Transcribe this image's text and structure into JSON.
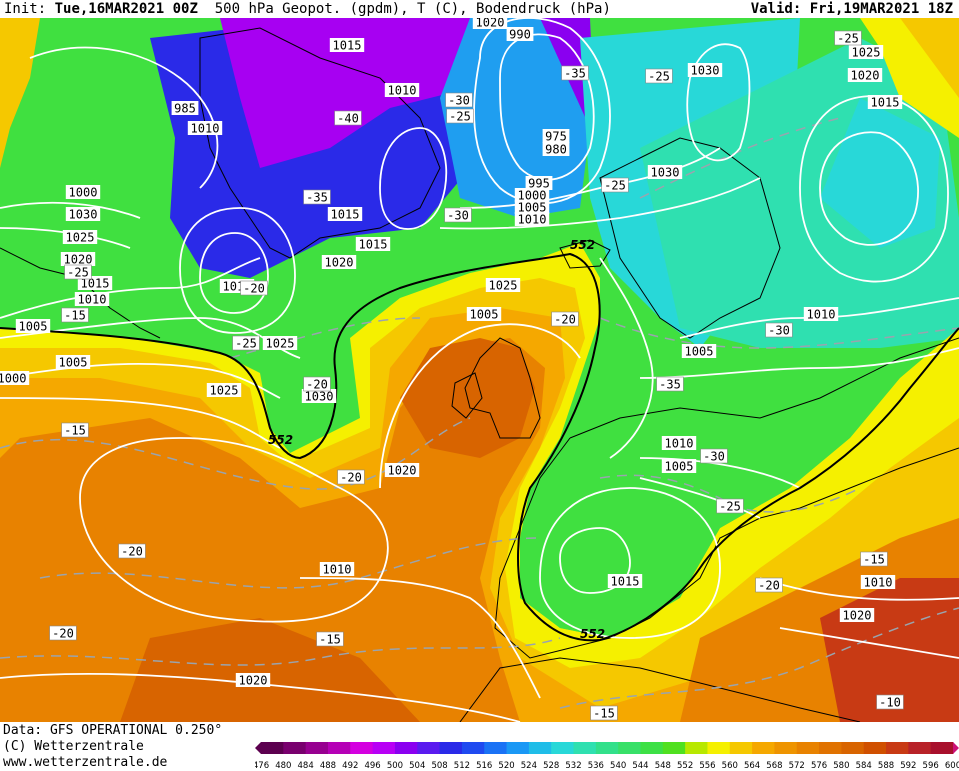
{
  "header": {
    "init_label": "Init:",
    "init_value": "Tue,16MAR2021 00Z",
    "product": "500 hPa Geopot. (gpdm), T (C), Bodendruck (hPa)",
    "valid_label": "Valid:",
    "valid_value": "Fri,19MAR2021 18Z"
  },
  "footer": {
    "data_line": "Data: GFS OPERATIONAL 0.250°",
    "copyright": "(C) Wetterzentrale",
    "url": "www.wetterzentrale.de"
  },
  "colorbar": {
    "ticks": [
      "476",
      "480",
      "484",
      "488",
      "492",
      "496",
      "500",
      "504",
      "508",
      "512",
      "516",
      "520",
      "524",
      "528",
      "532",
      "536",
      "540",
      "544",
      "548",
      "552",
      "556",
      "560",
      "564",
      "568",
      "572",
      "576",
      "580",
      "584",
      "588",
      "592",
      "596",
      "600"
    ],
    "colors": [
      "#5c004f",
      "#79006e",
      "#970090",
      "#b500b6",
      "#d400e0",
      "#b800f5",
      "#8a00f0",
      "#5a1bef",
      "#2a2ae8",
      "#1f4af0",
      "#1a72f5",
      "#1a98f5",
      "#1fbde8",
      "#28d8d8",
      "#2fe0b0",
      "#32e08a",
      "#38e068",
      "#3de045",
      "#50e020",
      "#b8e800",
      "#f5f000",
      "#f5c800",
      "#f5a800",
      "#ee9400",
      "#e88200",
      "#e07200",
      "#d86400",
      "#d05000",
      "#c83a14",
      "#b82228",
      "#a8102c",
      "#cc1177"
    ]
  },
  "map": {
    "colors": {
      "deep_purple": "#8a00f0",
      "purple": "#a700f2",
      "blue": "#2a2ae8",
      "sky": "#1f9ef0",
      "cyan": "#28d8d8",
      "teal": "#2fe0b0",
      "green_dark": "#32e07a",
      "green": "#40e040",
      "yellow": "#f5f000",
      "gold": "#f5c800",
      "orange_light": "#f5a800",
      "orange": "#e88200",
      "orange_dark": "#d86400",
      "red_orange": "#c83a14",
      "isobar": "#ffffff",
      "coast": "#000000",
      "isotherm": "#9aa4ae"
    },
    "geopot_552_label": "552",
    "pressure_labels": [
      "1015",
      "1020",
      "990",
      "985",
      "1010",
      "1015",
      "1005",
      "1000",
      "1030",
      "1025",
      "1020",
      "1015",
      "1010",
      "1005",
      "1000",
      "1010",
      "1015",
      "975",
      "980",
      "995",
      "1000",
      "1005",
      "1010",
      "1025",
      "1020",
      "1015",
      "1005",
      "1025",
      "1030",
      "1025",
      "1020",
      "1030",
      "1010",
      "1030",
      "1025",
      "1020",
      "1015",
      "1010",
      "1005",
      "1010",
      "1005",
      "1015",
      "1020",
      "1020",
      "1010"
    ],
    "temperature_labels": [
      "-25",
      "-35",
      "-30",
      "-25",
      "-40",
      "-25",
      "-35",
      "-25",
      "-30",
      "-20",
      "-15",
      "-25",
      "-25",
      "-20",
      "-30",
      "-35",
      "-30",
      "-25",
      "-20",
      "-15",
      "-20",
      "-20",
      "-15",
      "-20",
      "-15",
      "-20",
      "-10",
      "-15"
    ]
  }
}
